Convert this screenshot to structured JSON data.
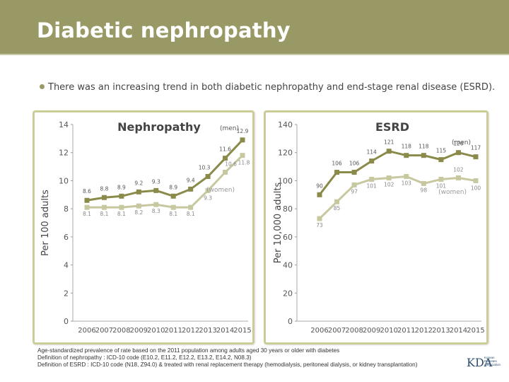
{
  "header": {
    "title": "Diabetic nephropathy"
  },
  "bullet": {
    "text": "There was an increasing trend in both diabetic nephropathy and end-stage renal disease (ESRD)."
  },
  "footnotes": [
    "Age-standardized prevalence of rate based on the 2011 population among adults aged 30 years or older with diabetes",
    "Definition of nephropathy : ICD-10 code (E10.2, E11.2, E12.2, E13.2, E14.2, N08.3)",
    "Definition of ESRD : ICD-10 code (N18, Z94.0) & treated with renal replacement therapy (hemodialysis, peritoneal dialysis, or kidney transplantation)"
  ],
  "colors": {
    "header": "#999966",
    "men": "#8a8a4a",
    "women": "#c8c8a0",
    "panel_border": "#cccc99"
  },
  "logo": {
    "letters": "KDA",
    "text": [
      "Korean",
      "Diabetes",
      "Association"
    ]
  },
  "chart_data": [
    {
      "type": "line",
      "title": "Nephropathy",
      "ylabel": "Per 100 adults",
      "ylim": [
        0,
        14
      ],
      "yticks": [
        0,
        2,
        4,
        6,
        8,
        10,
        12,
        14
      ],
      "x": [
        "2006",
        "2007",
        "2008",
        "2009",
        "2010",
        "2011",
        "2012",
        "2013",
        "2014",
        "2015"
      ],
      "series": [
        {
          "name": "(men)",
          "values": [
            8.6,
            8.8,
            8.9,
            9.2,
            9.3,
            8.9,
            9.4,
            10.3,
            11.6,
            12.9
          ],
          "labels": [
            "8.6",
            "8.8",
            "8.9",
            "9.2",
            "9.3",
            "8.9",
            "9.4",
            "10.3",
            "11.6",
            "12.9"
          ]
        },
        {
          "name": "(women)",
          "values": [
            8.1,
            8.1,
            8.1,
            8.2,
            8.3,
            8.1,
            8.1,
            9.3,
            10.6,
            11.8
          ],
          "labels": [
            "8.1",
            "8.1",
            "8.1",
            "8.2",
            "8.3",
            "8.1",
            "8.1",
            "9.3",
            "10.6",
            "11.8"
          ]
        }
      ]
    },
    {
      "type": "line",
      "title": "ESRD",
      "ylabel": "Per 10,000 adults",
      "ylim": [
        0,
        140
      ],
      "yticks": [
        0,
        20,
        40,
        60,
        80,
        100,
        120,
        140
      ],
      "x": [
        "2006",
        "2007",
        "2008",
        "2009",
        "2010",
        "2011",
        "2012",
        "2013",
        "2014",
        "2015"
      ],
      "series": [
        {
          "name": "(men)",
          "values": [
            90,
            106,
            106,
            114,
            121,
            118,
            118,
            115,
            120,
            117
          ],
          "labels": [
            "90",
            "106",
            "106",
            "114",
            "121",
            "118",
            "118",
            "115",
            "120",
            "117"
          ]
        },
        {
          "name": "(women)",
          "values": [
            73,
            85,
            97,
            101,
            102,
            103,
            98,
            101,
            102,
            100
          ],
          "labels": [
            "73",
            "85",
            "97",
            "101",
            "102",
            "103",
            "98",
            "101",
            "102",
            "100"
          ]
        }
      ]
    }
  ]
}
